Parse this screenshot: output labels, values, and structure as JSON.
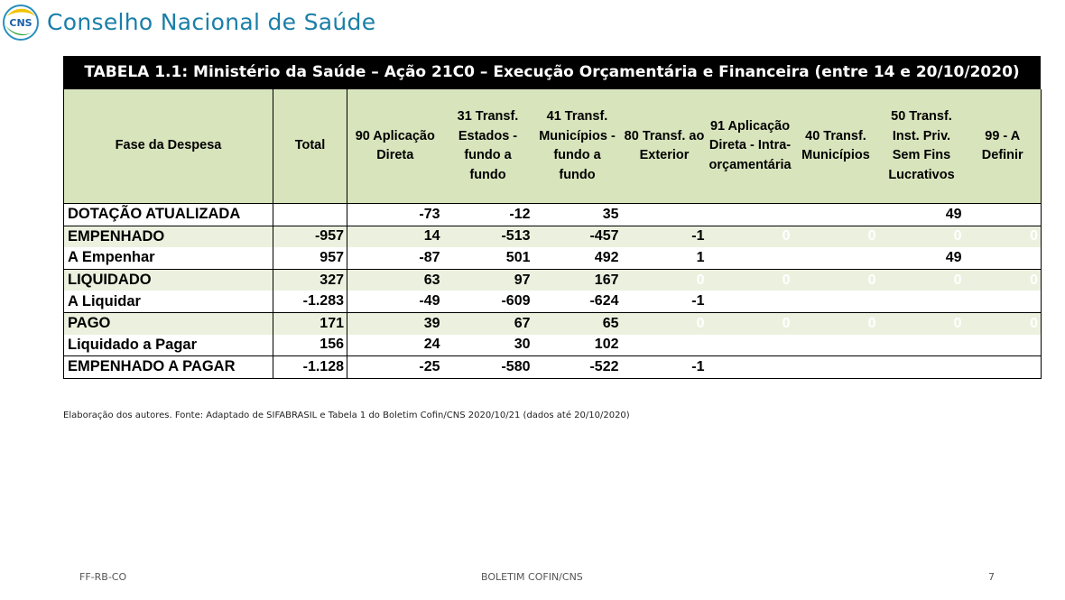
{
  "header": {
    "logo_text": "CNS",
    "org_name": "Conselho Nacional de Saúde"
  },
  "table": {
    "title": "TABELA 1.1: Ministério da Saúde – Ação 21C0 – Execução Orçamentária e Financeira (entre 14 e 20/10/2020)",
    "columns": [
      "Fase da Despesa",
      "Total",
      "90 Aplicação Direta",
      "31 Transf. Estados - fundo a fundo",
      "41 Transf. Municípios - fundo a fundo",
      "80 Transf. ao Exterior",
      "91 Aplicação Direta - Intra-orçamentária",
      "40 Transf. Municípios",
      "50 Transf. Inst. Priv. Sem Fins Lucrativos",
      "99 - A Definir"
    ],
    "rows": [
      [
        "DOTAÇÃO ATUALIZADA",
        "",
        "-73",
        "-12",
        "35",
        "",
        "",
        "",
        "49",
        ""
      ],
      [
        "EMPENHADO",
        "-957",
        "14",
        "-513",
        "-457",
        "-1",
        "0",
        "0",
        "0",
        "0"
      ],
      [
        "A Empenhar",
        "957",
        "-87",
        "501",
        "492",
        "1",
        "",
        "",
        "49",
        ""
      ],
      [
        "LIQUIDADO",
        "327",
        "63",
        "97",
        "167",
        "0",
        "0",
        "0",
        "0",
        "0"
      ],
      [
        "A Liquidar",
        "-1.283",
        "-49",
        "-609",
        "-624",
        "-1",
        "",
        "",
        "",
        ""
      ],
      [
        "PAGO",
        "171",
        "39",
        "67",
        "65",
        "0",
        "0",
        "0",
        "0",
        "0"
      ],
      [
        "Liquidado a Pagar",
        "156",
        "24",
        "30",
        "102",
        "",
        "",
        "",
        "",
        ""
      ],
      [
        "EMPENHADO A PAGAR",
        "-1.128",
        "-25",
        "-580",
        "-522",
        "-1",
        "",
        "",
        "",
        ""
      ]
    ]
  },
  "source_note": "Elaboração dos autores. Fonte: Adaptado de SIFABRASIL e Tabela 1 do Boletim Cofin/CNS 2020/10/21 (dados até 20/10/2020)",
  "footer": {
    "left": "FF-RB-CO",
    "center": "BOLETIM COFIN/CNS",
    "page": "7"
  },
  "colors": {
    "header_fill": "#d8e4bc",
    "row_green": "#ebf1de",
    "title_bar": "#000000",
    "brand_blue": "#1a7fa8"
  }
}
